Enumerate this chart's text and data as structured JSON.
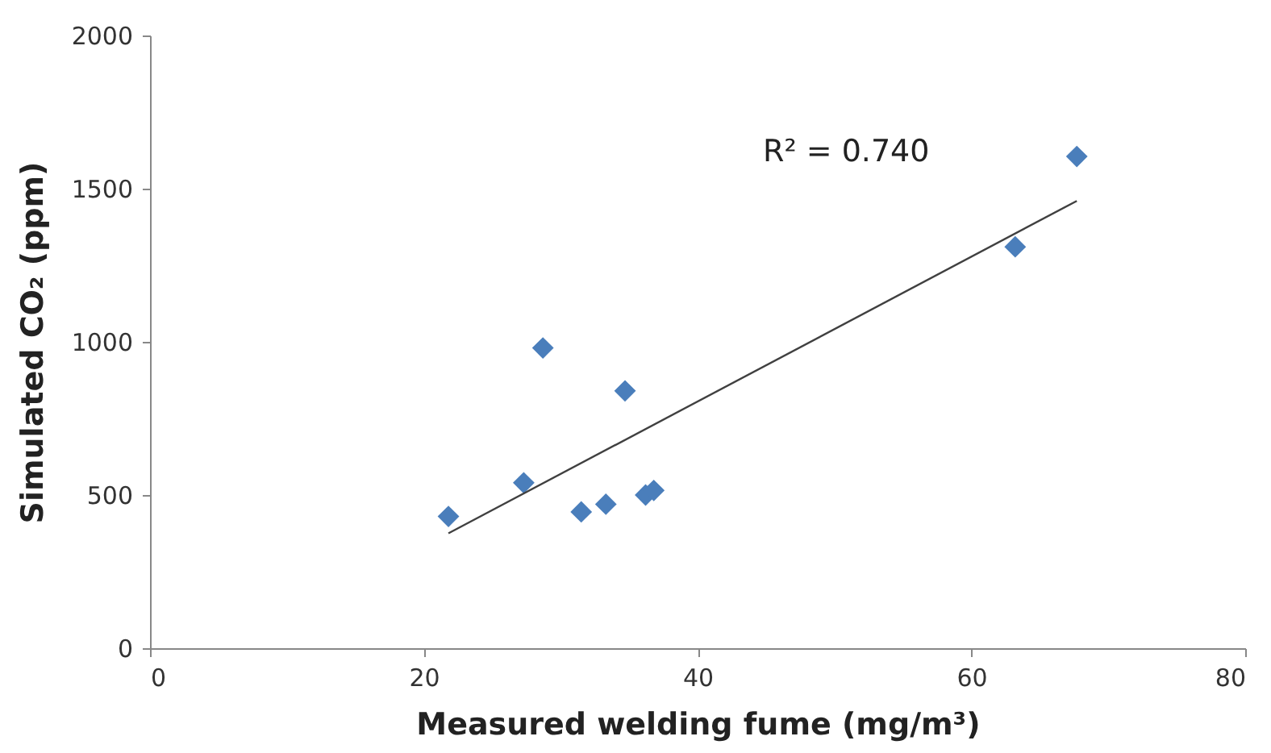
{
  "chart_data": {
    "type": "scatter",
    "xlabel": "Measured welding fume (mg/m³)",
    "ylabel": "Simulated CO₂ (ppm)",
    "xlim": [
      0,
      80
    ],
    "xticks": [
      0,
      20,
      40,
      60,
      80
    ],
    "ylim": [
      0,
      2000
    ],
    "yticks": [
      0,
      500,
      1000,
      1500,
      2000
    ],
    "grid": false,
    "annotations": [
      "R² = 0.740"
    ],
    "series": [
      {
        "color": "#4a7ebb",
        "marker": "diamond",
        "x": [
          21.8,
          27.3,
          28.7,
          31.5,
          33.3,
          34.7,
          36.2,
          36.8,
          63.2,
          67.7
        ],
        "values": [
          430,
          540,
          980,
          445,
          470,
          840,
          500,
          515,
          1310,
          1605
        ]
      },
      {
        "type": "line",
        "color": "#404040",
        "marker": "none",
        "line_style": "solid",
        "x": [
          21.8,
          67.7
        ],
        "values": [
          375,
          1460
        ]
      }
    ]
  }
}
